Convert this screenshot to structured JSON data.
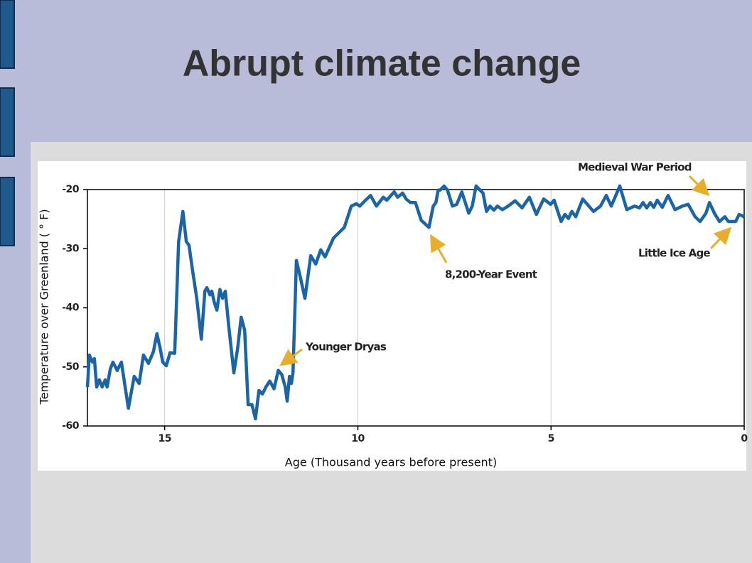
{
  "slide": {
    "title": "Abrupt climate change"
  },
  "chart_data": {
    "type": "line",
    "xlabel": "Age (Thousand years before present)",
    "ylabel": "Temperature over Greenland ( ° F)",
    "color": "#1a64a8",
    "xlim": [
      17,
      0
    ],
    "xticks": [
      15,
      10,
      5,
      0
    ],
    "ylim": [
      -60,
      -20
    ],
    "yticks": [
      -20,
      -30,
      -40,
      -50,
      -60
    ],
    "xgrid": true,
    "annotations": [
      "Medieval War Period",
      "8,200-Year Event",
      "Younger Dryas",
      "Little Ice Age"
    ],
    "x": [
      17.0,
      16.95,
      16.87,
      16.82,
      16.76,
      16.69,
      16.62,
      16.54,
      16.49,
      16.41,
      16.34,
      16.23,
      16.12,
      15.94,
      15.79,
      15.66,
      15.55,
      15.42,
      15.29,
      15.2,
      15.12,
      15.05,
      14.96,
      14.86,
      14.74,
      14.64,
      14.53,
      14.44,
      14.37,
      14.28,
      14.17,
      14.05,
      13.96,
      13.91,
      13.83,
      13.78,
      13.72,
      13.65,
      13.57,
      13.5,
      13.43,
      13.34,
      13.21,
      13.11,
      13.02,
      12.93,
      12.84,
      12.74,
      12.65,
      12.56,
      12.47,
      12.38,
      12.28,
      12.17,
      12.06,
      11.97,
      11.88,
      11.83,
      11.77,
      11.72,
      11.68,
      11.59,
      11.49,
      11.37,
      11.22,
      11.09,
      10.96,
      10.85,
      10.63,
      10.35,
      10.17,
      10.04,
      9.95,
      9.8,
      9.67,
      9.52,
      9.34,
      9.25,
      9.06,
      8.97,
      8.84,
      8.75,
      8.64,
      8.51,
      8.36,
      8.16,
      8.05,
      7.98,
      7.92,
      7.87,
      7.77,
      7.68,
      7.55,
      7.44,
      7.31,
      7.13,
      7.04,
      6.94,
      6.76,
      6.67,
      6.58,
      6.48,
      6.39,
      6.26,
      6.11,
      5.93,
      5.75,
      5.56,
      5.38,
      5.19,
      5.01,
      4.92,
      4.74,
      4.64,
      4.55,
      4.46,
      4.36,
      4.18,
      3.9,
      3.72,
      3.57,
      3.44,
      3.22,
      3.04,
      2.84,
      2.71,
      2.62,
      2.52,
      2.43,
      2.34,
      2.25,
      2.12,
      1.97,
      1.79,
      1.6,
      1.45,
      1.27,
      1.14,
      0.99,
      0.9,
      0.77,
      0.64,
      0.5,
      0.41,
      0.22,
      0.13,
      0.0
    ],
    "values": [
      -53.4,
      -48.0,
      -49.2,
      -48.6,
      -53.4,
      -52.2,
      -53.4,
      -52.2,
      -53.4,
      -50.4,
      -49.2,
      -50.6,
      -49.2,
      -57.0,
      -51.6,
      -52.8,
      -48.0,
      -49.4,
      -47.4,
      -44.4,
      -46.8,
      -49.2,
      -49.8,
      -47.6,
      -47.7,
      -28.8,
      -23.7,
      -28.8,
      -29.4,
      -33.6,
      -38.4,
      -45.3,
      -37.2,
      -36.6,
      -37.8,
      -37.2,
      -39.0,
      -40.4,
      -36.9,
      -38.4,
      -37.2,
      -43.2,
      -51.0,
      -46.8,
      -41.6,
      -43.8,
      -56.4,
      -56.4,
      -58.8,
      -54.0,
      -54.6,
      -53.4,
      -52.4,
      -53.7,
      -50.6,
      -51.3,
      -53.4,
      -55.8,
      -51.6,
      -52.8,
      -51.0,
      -32.0,
      -34.8,
      -38.4,
      -31.2,
      -32.6,
      -30.2,
      -31.4,
      -28.2,
      -26.4,
      -22.8,
      -22.4,
      -22.8,
      -21.8,
      -21.0,
      -22.8,
      -21.3,
      -21.8,
      -20.4,
      -21.3,
      -20.6,
      -21.6,
      -22.2,
      -22.2,
      -25.2,
      -26.4,
      -22.8,
      -22.2,
      -20.1,
      -20.1,
      -19.4,
      -20.1,
      -22.8,
      -22.5,
      -20.4,
      -24.0,
      -22.8,
      -19.4,
      -20.6,
      -23.7,
      -22.8,
      -23.5,
      -22.8,
      -23.4,
      -22.8,
      -21.9,
      -23.1,
      -21.3,
      -24.2,
      -21.6,
      -22.5,
      -21.8,
      -25.4,
      -24.2,
      -24.9,
      -23.7,
      -24.6,
      -21.6,
      -23.7,
      -22.8,
      -21.0,
      -22.8,
      -19.4,
      -23.4,
      -22.8,
      -23.1,
      -22.2,
      -23.1,
      -22.2,
      -23.0,
      -21.8,
      -23.0,
      -21.0,
      -23.4,
      -22.8,
      -22.5,
      -24.6,
      -25.4,
      -24.0,
      -22.2,
      -24.0,
      -25.4,
      -24.6,
      -25.4,
      -25.4,
      -24.2,
      -24.6
    ]
  }
}
